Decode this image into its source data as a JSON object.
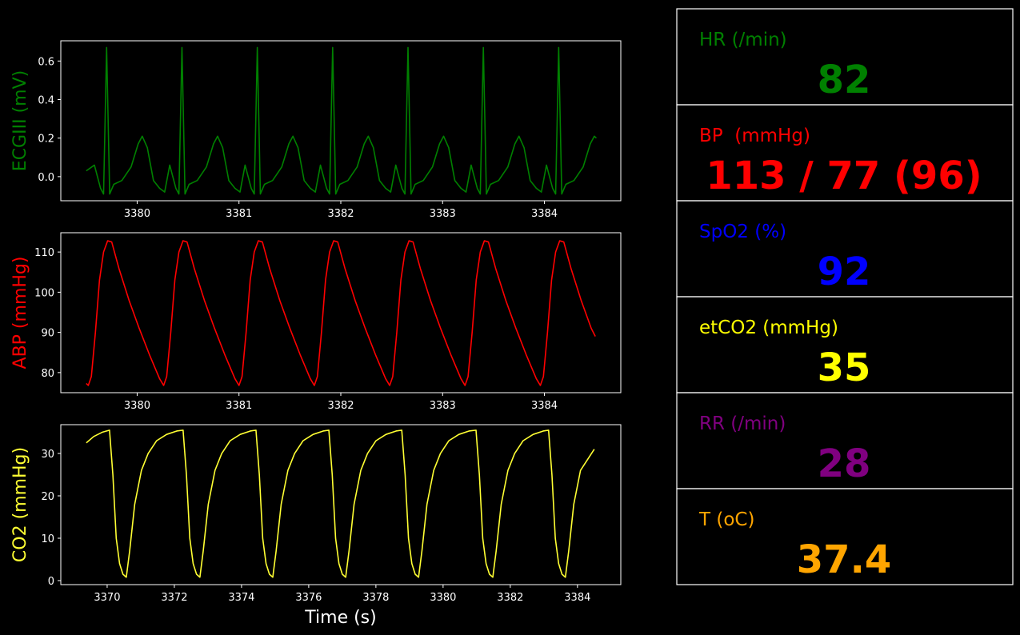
{
  "chart_data": [
    {
      "type": "line",
      "ylabel": "ECGIII (mV)",
      "color": "#008000",
      "xlim": [
        3379.25,
        3384.75
      ],
      "ylim": [
        -0.125,
        0.705
      ],
      "xticks": [
        3380,
        3381,
        3382,
        3383,
        3384
      ],
      "yticks": [
        {
          "value": 0,
          "label": "0.0"
        },
        0.2,
        0.4,
        0.6
      ],
      "x": [
        3379.5,
        3379.58,
        3379.64,
        3379.67,
        3379.7,
        3379.73,
        3379.77,
        3379.85,
        3379.94,
        3380.01,
        3380.05,
        3380.1,
        3380.16,
        3380.22,
        3380.27,
        3380.32,
        3380.38,
        3380.41,
        3380.44,
        3380.47,
        3380.51,
        3380.59,
        3380.68,
        3380.75,
        3380.79,
        3380.84,
        3380.9,
        3380.96,
        3381.01,
        3381.06,
        3381.12,
        3381.15,
        3381.18,
        3381.21,
        3381.25,
        3381.33,
        3381.42,
        3381.49,
        3381.53,
        3381.58,
        3381.64,
        3381.7,
        3381.75,
        3381.8,
        3381.86,
        3381.89,
        3381.92,
        3381.95,
        3381.99,
        3382.07,
        3382.16,
        3382.23,
        3382.27,
        3382.32,
        3382.38,
        3382.44,
        3382.49,
        3382.54,
        3382.6,
        3382.63,
        3382.66,
        3382.69,
        3382.73,
        3382.81,
        3382.9,
        3382.97,
        3383.01,
        3383.06,
        3383.12,
        3383.18,
        3383.23,
        3383.28,
        3383.34,
        3383.37,
        3383.4,
        3383.43,
        3383.47,
        3383.55,
        3383.64,
        3383.71,
        3383.75,
        3383.8,
        3383.86,
        3383.92,
        3383.97,
        3384.02,
        3384.08,
        3384.11,
        3384.14,
        3384.17,
        3384.21,
        3384.29,
        3384.38,
        3384.45,
        3384.49,
        3384.51
      ],
      "values": [
        0.03,
        0.06,
        -0.06,
        -0.09,
        0.67,
        -0.09,
        -0.04,
        -0.02,
        0.05,
        0.17,
        0.21,
        0.15,
        -0.02,
        -0.06,
        -0.08,
        0.06,
        -0.06,
        -0.09,
        0.67,
        -0.09,
        -0.04,
        -0.02,
        0.05,
        0.17,
        0.21,
        0.15,
        -0.02,
        -0.06,
        -0.08,
        0.06,
        -0.06,
        -0.09,
        0.67,
        -0.09,
        -0.04,
        -0.02,
        0.05,
        0.17,
        0.21,
        0.15,
        -0.02,
        -0.06,
        -0.08,
        0.06,
        -0.06,
        -0.09,
        0.67,
        -0.09,
        -0.04,
        -0.02,
        0.05,
        0.17,
        0.21,
        0.15,
        -0.02,
        -0.06,
        -0.08,
        0.06,
        -0.06,
        -0.09,
        0.67,
        -0.09,
        -0.04,
        -0.02,
        0.05,
        0.17,
        0.21,
        0.15,
        -0.02,
        -0.06,
        -0.08,
        0.06,
        -0.06,
        -0.09,
        0.67,
        -0.09,
        -0.04,
        -0.02,
        0.05,
        0.17,
        0.21,
        0.15,
        -0.02,
        -0.06,
        -0.08,
        0.06,
        -0.06,
        -0.09,
        0.67,
        -0.09,
        -0.04,
        -0.02,
        0.05,
        0.17,
        0.21,
        0.2
      ]
    },
    {
      "type": "line",
      "ylabel": "ABP (mmHg)",
      "color": "#ff0000",
      "xlim": [
        3379.25,
        3384.75
      ],
      "ylim": [
        75,
        114.8
      ],
      "xticks": [
        3380,
        3381,
        3382,
        3383,
        3384
      ],
      "yticks": [
        80,
        90,
        100,
        110
      ],
      "x": [
        3379.5,
        3379.52,
        3379.55,
        3379.59,
        3379.63,
        3379.67,
        3379.71,
        3379.75,
        3379.82,
        3379.92,
        3380.02,
        3380.12,
        3380.22,
        3380.26,
        3380.29,
        3380.33,
        3380.37,
        3380.41,
        3380.45,
        3380.49,
        3380.56,
        3380.66,
        3380.76,
        3380.86,
        3380.96,
        3381.0,
        3381.03,
        3381.07,
        3381.11,
        3381.15,
        3381.19,
        3381.23,
        3381.3,
        3381.4,
        3381.5,
        3381.6,
        3381.7,
        3381.74,
        3381.77,
        3381.81,
        3381.85,
        3381.89,
        3381.93,
        3381.97,
        3382.04,
        3382.14,
        3382.24,
        3382.34,
        3382.44,
        3382.48,
        3382.51,
        3382.55,
        3382.59,
        3382.63,
        3382.67,
        3382.71,
        3382.78,
        3382.88,
        3382.98,
        3383.08,
        3383.18,
        3383.22,
        3383.25,
        3383.29,
        3383.33,
        3383.37,
        3383.41,
        3383.45,
        3383.52,
        3383.62,
        3383.72,
        3383.82,
        3383.92,
        3383.96,
        3383.99,
        3384.03,
        3384.07,
        3384.11,
        3384.15,
        3384.19,
        3384.26,
        3384.36,
        3384.46,
        3384.5
      ],
      "values": [
        77.3,
        76.8,
        79,
        90,
        103,
        110,
        112.8,
        112.5,
        106,
        98,
        91,
        84.5,
        78.5,
        76.8,
        79,
        90,
        103,
        110,
        112.8,
        112.5,
        106,
        98,
        91,
        84.5,
        78.5,
        76.8,
        79,
        90,
        103,
        110,
        112.8,
        112.5,
        106,
        98,
        91,
        84.5,
        78.5,
        76.8,
        79,
        90,
        103,
        110,
        112.8,
        112.5,
        106,
        98,
        91,
        84.5,
        78.5,
        76.8,
        79,
        90,
        103,
        110,
        112.8,
        112.5,
        106,
        98,
        91,
        84.5,
        78.5,
        76.8,
        79,
        90,
        103,
        110,
        112.8,
        112.5,
        106,
        98,
        91,
        84.5,
        78.5,
        76.8,
        79,
        90,
        103,
        110,
        112.8,
        112.5,
        106,
        98,
        91,
        89
      ]
    },
    {
      "type": "line",
      "ylabel": "CO2 (mmHg)",
      "xlabel": "Time (s)",
      "color": "#ffff33",
      "xlim": [
        3368.62,
        3385.29
      ],
      "ylim": [
        -0.95,
        36.8
      ],
      "xticks": [
        3370,
        3372,
        3374,
        3376,
        3378,
        3380,
        3382,
        3384
      ],
      "yticks": [
        0,
        10,
        20,
        30
      ],
      "x": [
        3369.38,
        3369.6,
        3369.85,
        3370.07,
        3370.17,
        3370.27,
        3370.37,
        3370.47,
        3370.57,
        3370.67,
        3370.82,
        3371.02,
        3371.22,
        3371.47,
        3371.77,
        3372.07,
        3372.26,
        3372.36,
        3372.46,
        3372.56,
        3372.66,
        3372.76,
        3372.86,
        3373.01,
        3373.21,
        3373.41,
        3373.66,
        3373.96,
        3374.26,
        3374.43,
        3374.53,
        3374.63,
        3374.73,
        3374.83,
        3374.93,
        3375.03,
        3375.18,
        3375.38,
        3375.58,
        3375.83,
        3376.13,
        3376.43,
        3376.6,
        3376.7,
        3376.8,
        3376.9,
        3377.0,
        3377.1,
        3377.2,
        3377.35,
        3377.55,
        3377.75,
        3378.0,
        3378.3,
        3378.6,
        3378.77,
        3378.87,
        3378.97,
        3379.07,
        3379.17,
        3379.27,
        3379.37,
        3379.52,
        3379.72,
        3379.92,
        3380.17,
        3380.47,
        3380.77,
        3380.98,
        3381.08,
        3381.18,
        3381.28,
        3381.38,
        3381.48,
        3381.58,
        3381.73,
        3381.93,
        3382.13,
        3382.38,
        3382.68,
        3382.98,
        3383.14,
        3383.24,
        3383.34,
        3383.44,
        3383.54,
        3383.64,
        3383.74,
        3383.89,
        3384.09,
        3384.5
      ],
      "values": [
        32.5,
        34,
        35,
        35.5,
        25,
        10,
        4,
        1.5,
        0.8,
        7,
        18,
        26,
        30,
        33,
        34.5,
        35.3,
        35.5,
        25,
        10,
        4,
        1.5,
        0.8,
        7,
        18,
        26,
        30,
        33,
        34.5,
        35.3,
        35.5,
        25,
        10,
        4,
        1.5,
        0.8,
        7,
        18,
        26,
        30,
        33,
        34.5,
        35.3,
        35.5,
        25,
        10,
        4,
        1.5,
        0.8,
        7,
        18,
        26,
        30,
        33,
        34.5,
        35.3,
        35.5,
        25,
        10,
        4,
        1.5,
        0.8,
        7,
        18,
        26,
        30,
        33,
        34.5,
        35.3,
        35.5,
        25,
        10,
        4,
        1.5,
        0.8,
        7,
        18,
        26,
        30,
        33,
        34.5,
        35.3,
        35.5,
        25,
        10,
        4,
        1.5,
        0.8,
        7,
        18,
        26,
        31
      ]
    }
  ],
  "vitals": [
    {
      "label": "HR (/min)",
      "value": 82,
      "color": "#008000"
    },
    {
      "label": "BP  (mmHg)",
      "value": "113 / 77 (96)",
      "color": "#ff0000"
    },
    {
      "label": "SpO2 (%)",
      "value": 92,
      "color": "#0000ff"
    },
    {
      "label": "etCO2 (mmHg)",
      "value": 35,
      "color": "#ffff00"
    },
    {
      "label": "RR (/min)",
      "value": 28,
      "color": "#800080"
    },
    {
      "label": "T (oC)",
      "value": 37.4,
      "color": "#ffa500"
    }
  ]
}
